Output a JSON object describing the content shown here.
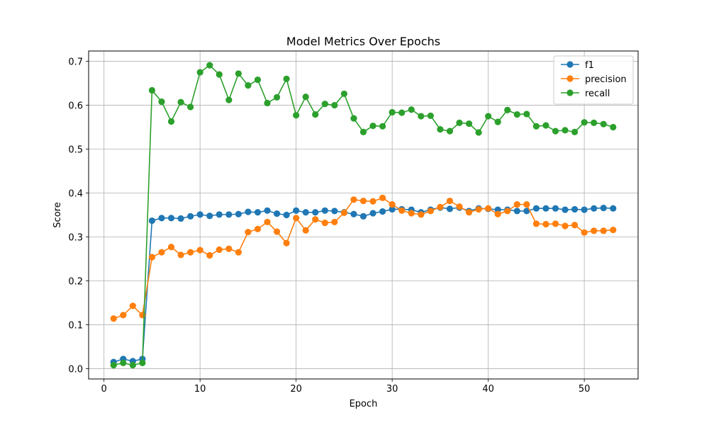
{
  "chart_data": {
    "type": "line",
    "title": "Model Metrics Over Epochs",
    "xlabel": "Epoch",
    "ylabel": "Score",
    "xlim": [
      -1.6,
      55.6
    ],
    "ylim": [
      -0.0235,
      0.7235
    ],
    "xticks": [
      0,
      10,
      20,
      30,
      40,
      50
    ],
    "yticks": [
      0.0,
      0.1,
      0.2,
      0.3,
      0.4,
      0.5,
      0.6,
      0.7
    ],
    "xtick_labels": [
      "0",
      "10",
      "20",
      "30",
      "40",
      "50"
    ],
    "ytick_labels": [
      "0.0",
      "0.1",
      "0.2",
      "0.3",
      "0.4",
      "0.5",
      "0.6",
      "0.7"
    ],
    "grid": true,
    "legend_position": "top-right",
    "x": [
      1,
      2,
      3,
      4,
      5,
      6,
      7,
      8,
      9,
      10,
      11,
      12,
      13,
      14,
      15,
      16,
      17,
      18,
      19,
      20,
      21,
      22,
      23,
      24,
      25,
      26,
      27,
      28,
      29,
      30,
      31,
      32,
      33,
      34,
      35,
      36,
      37,
      38,
      39,
      40,
      41,
      42,
      43,
      44,
      45,
      46,
      47,
      48,
      49,
      50,
      51,
      52,
      53
    ],
    "series": [
      {
        "name": "f1",
        "color": "#1f77b4",
        "values": [
          0.015,
          0.022,
          0.017,
          0.022,
          0.337,
          0.343,
          0.343,
          0.342,
          0.347,
          0.351,
          0.348,
          0.351,
          0.351,
          0.352,
          0.357,
          0.356,
          0.36,
          0.353,
          0.35,
          0.36,
          0.356,
          0.356,
          0.36,
          0.359,
          0.356,
          0.352,
          0.347,
          0.354,
          0.358,
          0.363,
          0.363,
          0.362,
          0.356,
          0.362,
          0.367,
          0.364,
          0.367,
          0.359,
          0.365,
          0.364,
          0.362,
          0.362,
          0.359,
          0.359,
          0.365,
          0.365,
          0.365,
          0.362,
          0.363,
          0.362,
          0.365,
          0.366,
          0.365
        ]
      },
      {
        "name": "precision",
        "color": "#ff7f0e",
        "values": [
          0.114,
          0.122,
          0.143,
          0.122,
          0.254,
          0.265,
          0.277,
          0.259,
          0.265,
          0.27,
          0.258,
          0.271,
          0.273,
          0.265,
          0.311,
          0.318,
          0.334,
          0.312,
          0.286,
          0.343,
          0.315,
          0.34,
          0.332,
          0.334,
          0.355,
          0.385,
          0.382,
          0.381,
          0.389,
          0.374,
          0.36,
          0.354,
          0.351,
          0.359,
          0.368,
          0.382,
          0.369,
          0.356,
          0.363,
          0.365,
          0.352,
          0.359,
          0.374,
          0.374,
          0.33,
          0.329,
          0.33,
          0.325,
          0.327,
          0.31,
          0.314,
          0.314,
          0.316
        ]
      },
      {
        "name": "recall",
        "color": "#2ca02c",
        "values": [
          0.008,
          0.013,
          0.008,
          0.013,
          0.634,
          0.608,
          0.563,
          0.607,
          0.596,
          0.675,
          0.691,
          0.67,
          0.612,
          0.672,
          0.645,
          0.658,
          0.605,
          0.618,
          0.66,
          0.577,
          0.619,
          0.579,
          0.603,
          0.6,
          0.626,
          0.57,
          0.539,
          0.553,
          0.552,
          0.584,
          0.583,
          0.59,
          0.575,
          0.576,
          0.545,
          0.541,
          0.56,
          0.558,
          0.538,
          0.575,
          0.562,
          0.589,
          0.579,
          0.58,
          0.552,
          0.554,
          0.541,
          0.543,
          0.539,
          0.561,
          0.56,
          0.557,
          0.55
        ]
      }
    ]
  }
}
